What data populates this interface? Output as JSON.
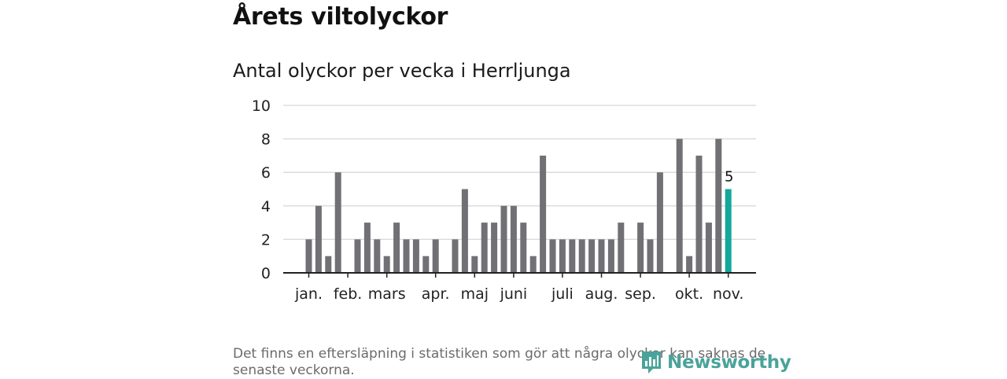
{
  "title": "Årets viltolyckor",
  "subtitle": "Antal olyckor per vecka i Herrljunga",
  "footnote": "Det finns en eftersläpning i statistiken som gör att några olyckor kan saknas de senaste veckorna.",
  "brand": {
    "name": "Newsworthy",
    "color": "#4aa39a"
  },
  "colors": {
    "bar": "#707075",
    "highlight": "#14a79b",
    "grid": "#d8d8d8",
    "axis": "#222222"
  },
  "chart_data": {
    "type": "bar",
    "title": "Antal olyckor per vecka i Herrljunga",
    "xlabel": "",
    "ylabel": "",
    "ylim": [
      0,
      10
    ],
    "yticks": [
      0,
      2,
      4,
      6,
      8,
      10
    ],
    "weeks": [
      1,
      2,
      3,
      4,
      5,
      6,
      7,
      8,
      9,
      10,
      11,
      12,
      13,
      14,
      15,
      16,
      17,
      18,
      19,
      20,
      21,
      22,
      23,
      24,
      25,
      26,
      27,
      28,
      29,
      30,
      31,
      32,
      33,
      34,
      35,
      36,
      37,
      38,
      39,
      40,
      41,
      42,
      43,
      44,
      45
    ],
    "values": [
      2,
      4,
      1,
      6,
      0,
      2,
      3,
      2,
      1,
      3,
      2,
      2,
      1,
      2,
      0,
      2,
      5,
      1,
      3,
      3,
      4,
      4,
      3,
      1,
      7,
      2,
      2,
      2,
      2,
      2,
      2,
      2,
      3,
      0,
      3,
      2,
      6,
      0,
      8,
      1,
      7,
      3,
      8,
      5,
      null
    ],
    "highlight_week": 44,
    "highlight_label": "5",
    "month_labels": [
      {
        "label": "jan.",
        "week": 1
      },
      {
        "label": "feb.",
        "week": 5
      },
      {
        "label": "mars",
        "week": 9
      },
      {
        "label": "apr.",
        "week": 14
      },
      {
        "label": "maj",
        "week": 18
      },
      {
        "label": "juni",
        "week": 22
      },
      {
        "label": "juli",
        "week": 27
      },
      {
        "label": "aug.",
        "week": 31
      },
      {
        "label": "sep.",
        "week": 35
      },
      {
        "label": "okt.",
        "week": 40
      },
      {
        "label": "nov.",
        "week": 44
      }
    ]
  }
}
